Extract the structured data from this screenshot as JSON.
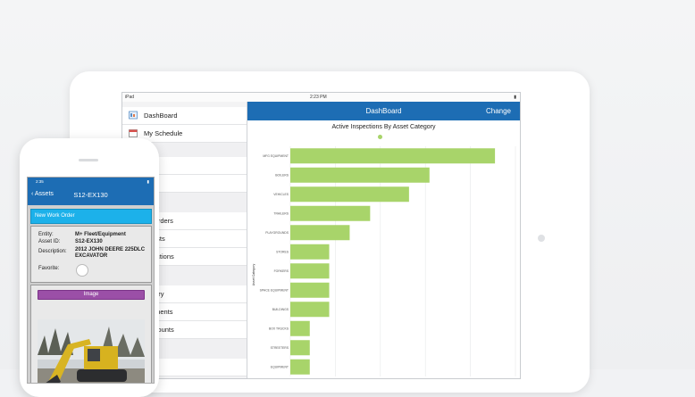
{
  "ipad": {
    "status": {
      "carrier": "iPad",
      "time": "2:23 PM",
      "battery": ""
    },
    "sidebar": {
      "items": [
        {
          "label": "DashBoard",
          "icon": "dashboard-icon"
        },
        {
          "label": "My Schedule",
          "icon": "calendar-icon"
        },
        {
          "label": "s",
          "icon": ""
        },
        {
          "label": "",
          "icon": ""
        },
        {
          "label": "Orders",
          "icon": ""
        },
        {
          "label": "ests",
          "icon": ""
        },
        {
          "label": "ections",
          "icon": ""
        },
        {
          "label": "tory",
          "icon": ""
        },
        {
          "label": "tments",
          "icon": ""
        },
        {
          "label": "Counts",
          "icon": ""
        }
      ]
    },
    "dashboard": {
      "title": "DashBoard",
      "change_label": "Change"
    }
  },
  "iphone": {
    "status": {
      "time": "2:35",
      "battery": ""
    },
    "nav": {
      "back_label": "Assets",
      "title": "S12-EX130"
    },
    "new_work_order_label": "New Work Order",
    "details": [
      {
        "key": "Entity:",
        "value": "M+ Fleet/Equipment"
      },
      {
        "key": "Asset ID:",
        "value": "S12-EX130"
      },
      {
        "key": "Description:",
        "value": "2012 JOHN DEERE 225DLC EXCAVATOR"
      },
      {
        "key": "Favorite:",
        "value": ""
      }
    ],
    "image_label": "Image"
  },
  "colors": {
    "brand_blue": "#1d6db4",
    "accent_cyan": "#1cb1ea",
    "bar_green": "#a8d46a",
    "image_purple": "#9b4fa7"
  },
  "chart_data": {
    "type": "bar",
    "orientation": "horizontal",
    "title": "Active Inspections By Asset Category",
    "ylabel": "Asset Category",
    "categories": [
      "MFG EQUIPMENT",
      "BOILERS",
      "VEHICLES",
      "TRAILERS",
      "PLAYGROUNDS",
      "STORES",
      "FORKERS",
      "SPACE EQUIPMENT",
      "BUILDINGS",
      "BOX TRUCKS",
      "STREETERS",
      "EQUIPMENT"
    ],
    "values": [
      10,
      6.8,
      5.8,
      3.9,
      2.9,
      1.9,
      1.9,
      1.9,
      1.9,
      0.95,
      0.95,
      0.95
    ],
    "xlim": [
      0,
      11
    ],
    "grid": true
  }
}
